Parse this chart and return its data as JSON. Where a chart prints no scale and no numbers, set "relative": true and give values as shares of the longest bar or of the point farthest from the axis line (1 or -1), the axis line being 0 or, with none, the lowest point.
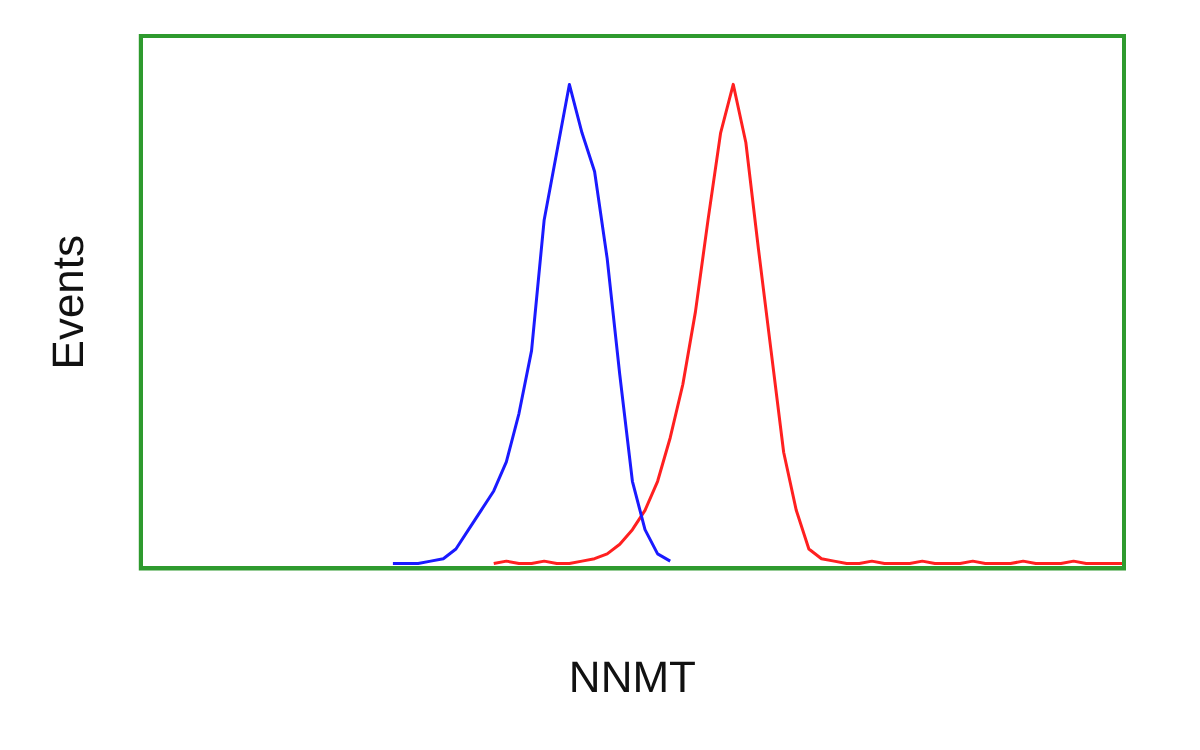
{
  "chart_data": {
    "type": "line",
    "xlabel": "NNMT",
    "ylabel": "Events",
    "relative": true,
    "grid": false,
    "legend": false,
    "marker": "none",
    "categories": [
      null,
      null,
      null,
      null,
      null,
      null,
      null,
      null,
      null,
      null,
      null,
      null,
      null,
      null,
      null,
      null,
      null,
      null,
      null,
      null,
      null,
      null,
      null,
      null,
      null,
      null,
      null,
      null,
      null,
      null,
      null,
      null,
      null,
      null,
      null,
      null,
      null,
      null,
      null,
      null,
      null,
      null,
      null,
      null,
      null,
      null,
      null,
      null,
      null,
      null,
      null,
      null,
      null,
      null,
      null,
      null,
      null,
      null,
      null,
      null,
      null,
      null,
      null,
      null,
      null,
      null,
      null,
      null,
      null,
      null,
      null,
      null,
      null,
      null,
      null,
      null,
      null,
      null,
      null
    ],
    "series": [
      {
        "color": "#1a1aff",
        "values": [
          null,
          null,
          null,
          null,
          null,
          null,
          null,
          null,
          null,
          null,
          null,
          null,
          null,
          null,
          null,
          null,
          null,
          null,
          null,
          null,
          0.01,
          0.01,
          0.01,
          0.015,
          0.02,
          0.04,
          0.08,
          0.12,
          0.16,
          0.22,
          0.32,
          0.45,
          0.72,
          0.86,
          1,
          0.9,
          0.82,
          0.64,
          0.4,
          0.18,
          0.08,
          0.03,
          0.015,
          null,
          null,
          null,
          null,
          null,
          null,
          null,
          null,
          null,
          null,
          null,
          null,
          null,
          null,
          null,
          null,
          null,
          null,
          null,
          null,
          null,
          null,
          null,
          null,
          null,
          null,
          null,
          null,
          null,
          null,
          null,
          null,
          null,
          null,
          null,
          null
        ]
      },
      {
        "color": "#ff2020",
        "values": [
          null,
          null,
          null,
          null,
          null,
          null,
          null,
          null,
          null,
          null,
          null,
          null,
          null,
          null,
          null,
          null,
          null,
          null,
          null,
          null,
          null,
          null,
          null,
          null,
          null,
          null,
          null,
          null,
          0.01,
          0.015,
          0.01,
          0.01,
          0.015,
          0.01,
          0.01,
          0.015,
          0.02,
          0.03,
          0.05,
          0.08,
          0.12,
          0.18,
          0.27,
          0.38,
          0.53,
          0.72,
          0.9,
          1,
          0.88,
          0.66,
          0.45,
          0.24,
          0.12,
          0.04,
          0.02,
          0.015,
          0.01,
          0.01,
          0.015,
          0.01,
          0.01,
          0.01,
          0.015,
          0.01,
          0.01,
          0.01,
          0.015,
          0.01,
          0.01,
          0.01,
          0.015,
          0.01,
          0.01,
          0.01,
          0.015,
          0.01,
          0.01,
          0.01,
          0.01
        ]
      }
    ]
  }
}
